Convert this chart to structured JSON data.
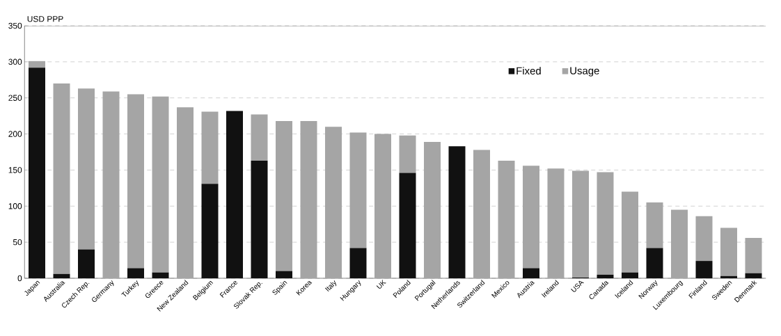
{
  "chart_data": {
    "type": "bar",
    "ylabel": "USD PPP",
    "stacked": true,
    "categories": [
      "Japan",
      "Australia",
      "Czech Rep.",
      "Germany",
      "Turkey",
      "Greece",
      "New Zealand",
      "Belgium",
      "France",
      "Slovak Rep.",
      "Spain",
      "Korea",
      "Italy",
      "Hungary",
      "UK",
      "Poland",
      "Portugal",
      "Netherlands",
      "Switzerland",
      "Mexico",
      "Austria",
      "Ireland",
      "USA",
      "Canada",
      "Iceland",
      "Norway",
      "Luxembourg",
      "Finland",
      "Sweden",
      "Denmark"
    ],
    "series": [
      {
        "name": "Fixed",
        "color": "#111111",
        "values": [
          292,
          6,
          40,
          0,
          14,
          8,
          0,
          131,
          232,
          163,
          10,
          0,
          0,
          42,
          0,
          146,
          0,
          183,
          0,
          0,
          14,
          0,
          1,
          5,
          8,
          42,
          0,
          24,
          3,
          7
        ]
      },
      {
        "name": "Usage",
        "color": "#a5a5a5",
        "values": [
          9,
          264,
          223,
          259,
          241,
          244,
          237,
          100,
          0,
          64,
          208,
          218,
          210,
          160,
          200,
          52,
          189,
          0,
          178,
          163,
          142,
          152,
          148,
          142,
          112,
          63,
          95,
          62,
          67,
          49
        ]
      }
    ],
    "ylim": [
      0,
      350
    ],
    "yticks": [
      0,
      50,
      100,
      150,
      200,
      250,
      300,
      350
    ],
    "grid": "y",
    "legend": "top right"
  }
}
